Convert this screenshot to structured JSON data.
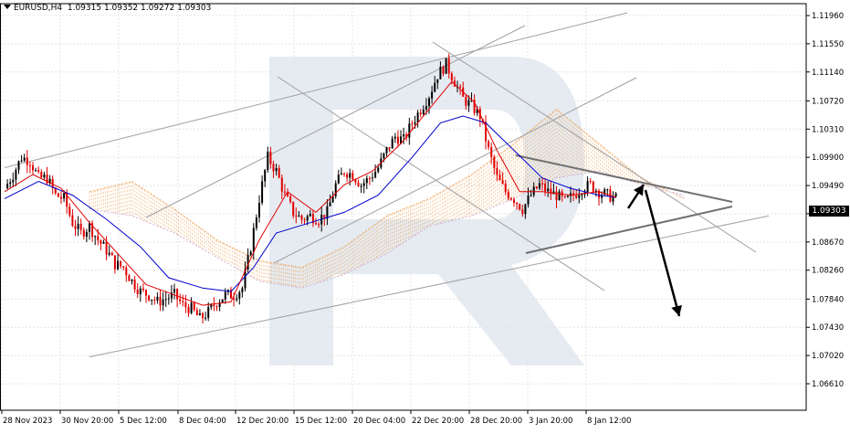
{
  "header": {
    "symbol": "EURUSD,H4",
    "ohlc": "1.09315 1.09352 1.09272 1.09303"
  },
  "current_price": "1.09303",
  "colors": {
    "bull": "#000000",
    "bear": "#e00000",
    "tenkan": "#e00000",
    "kijun": "#0000cc",
    "kumo_bull": "#f0a050",
    "kumo_bear": "#c8a0d0",
    "trendline": "#a0a0a0",
    "triangle": "#707070",
    "arrow": "#000000",
    "watermark": "#dfe6ee"
  },
  "chart_data": {
    "type": "candlestick",
    "y_ticks": [
      "1.11960",
      "1.11550",
      "1.11140",
      "1.10720",
      "1.10310",
      "1.09900",
      "1.09490",
      "1.09080",
      "1.08670",
      "1.08260",
      "1.07840",
      "1.07430",
      "1.07020",
      "1.06610"
    ],
    "x_ticks": [
      "28 Nov 2023",
      "30 Nov 20:00",
      "5 Dec 12:00",
      "8 Dec 04:00",
      "12 Dec 20:00",
      "15 Dec 12:00",
      "20 Dec 04:00",
      "22 Dec 20:00",
      "28 Dec 20:00",
      "3 Jan 20:00",
      "8 Jan 12:00"
    ],
    "ylim": [
      1.0661,
      1.1196
    ],
    "grid": true,
    "close_path": [
      [
        0,
        1.0945
      ],
      [
        3,
        1.0965
      ],
      [
        6,
        1.099
      ],
      [
        9,
        1.0985
      ],
      [
        12,
        1.096
      ],
      [
        15,
        1.096
      ],
      [
        18,
        1.0935
      ],
      [
        21,
        1.093
      ],
      [
        24,
        1.0895
      ],
      [
        27,
        1.088
      ],
      [
        30,
        1.089
      ],
      [
        33,
        1.087
      ],
      [
        36,
        1.0855
      ],
      [
        39,
        1.0835
      ],
      [
        42,
        1.083
      ],
      [
        45,
        1.081
      ],
      [
        48,
        1.0795
      ],
      [
        51,
        1.079
      ],
      [
        54,
        1.078
      ],
      [
        57,
        1.0785
      ],
      [
        60,
        1.079
      ],
      [
        63,
        1.0775
      ],
      [
        66,
        1.077
      ],
      [
        69,
        1.0755
      ],
      [
        72,
        1.0765
      ],
      [
        75,
        1.078
      ],
      [
        78,
        1.079
      ],
      [
        81,
        1.079
      ],
      [
        84,
        1.08
      ],
      [
        87,
        1.086
      ],
      [
        90,
        1.093
      ],
      [
        93,
        1.099
      ],
      [
        96,
        1.097
      ],
      [
        99,
        1.0935
      ],
      [
        102,
        1.091
      ],
      [
        105,
        1.09
      ],
      [
        108,
        1.0905
      ],
      [
        111,
        1.09
      ],
      [
        114,
        1.091
      ],
      [
        117,
        1.095
      ],
      [
        120,
        1.097
      ],
      [
        123,
        1.0965
      ],
      [
        126,
        1.095
      ],
      [
        129,
        1.096
      ],
      [
        132,
        1.0975
      ],
      [
        135,
        1.1
      ],
      [
        138,
        1.102
      ],
      [
        141,
        1.1015
      ],
      [
        144,
        1.104
      ],
      [
        147,
        1.106
      ],
      [
        150,
        1.108
      ],
      [
        153,
        1.111
      ],
      [
        156,
        1.1125
      ],
      [
        159,
        1.11
      ],
      [
        162,
        1.1075
      ],
      [
        165,
        1.1065
      ],
      [
        168,
        1.105
      ],
      [
        171,
        1.1
      ],
      [
        174,
        1.096
      ],
      [
        177,
        1.094
      ],
      [
        180,
        1.093
      ],
      [
        183,
        1.0915
      ],
      [
        186,
        1.0935
      ],
      [
        189,
        1.095
      ],
      [
        192,
        1.094
      ],
      [
        195,
        1.0935
      ],
      [
        198,
        1.0925
      ],
      [
        201,
        1.0935
      ],
      [
        204,
        1.0945
      ],
      [
        207,
        1.095
      ],
      [
        210,
        1.094
      ],
      [
        213,
        1.0935
      ],
      [
        216,
        1.093
      ]
    ],
    "tenkan_path": [
      [
        0,
        1.094
      ],
      [
        10,
        1.0965
      ],
      [
        20,
        1.0945
      ],
      [
        30,
        1.0895
      ],
      [
        40,
        1.085
      ],
      [
        50,
        1.0805
      ],
      [
        60,
        1.079
      ],
      [
        70,
        1.0775
      ],
      [
        80,
        1.078
      ],
      [
        90,
        1.087
      ],
      [
        100,
        1.094
      ],
      [
        110,
        1.091
      ],
      [
        120,
        1.095
      ],
      [
        130,
        1.097
      ],
      [
        140,
        1.101
      ],
      [
        150,
        1.106
      ],
      [
        158,
        1.11
      ],
      [
        166,
        1.107
      ],
      [
        174,
        1.1
      ],
      [
        182,
        1.094
      ],
      [
        190,
        1.094
      ],
      [
        200,
        1.0935
      ],
      [
        210,
        1.094
      ],
      [
        216,
        1.0932
      ]
    ],
    "kijun_path": [
      [
        0,
        1.093
      ],
      [
        12,
        1.0955
      ],
      [
        24,
        1.0935
      ],
      [
        36,
        1.09
      ],
      [
        48,
        1.086
      ],
      [
        58,
        1.0815
      ],
      [
        70,
        1.08
      ],
      [
        80,
        1.0795
      ],
      [
        88,
        1.083
      ],
      [
        96,
        1.088
      ],
      [
        108,
        1.0895
      ],
      [
        120,
        1.091
      ],
      [
        132,
        1.0935
      ],
      [
        144,
        1.099
      ],
      [
        154,
        1.104
      ],
      [
        162,
        1.105
      ],
      [
        170,
        1.104
      ],
      [
        180,
        1.1
      ],
      [
        190,
        1.096
      ],
      [
        200,
        1.0945
      ],
      [
        210,
        1.0935
      ],
      [
        216,
        1.0932
      ]
    ],
    "senkou_a_path": [
      [
        30,
        1.094
      ],
      [
        45,
        1.0955
      ],
      [
        60,
        1.0915
      ],
      [
        75,
        1.087
      ],
      [
        90,
        1.084
      ],
      [
        105,
        1.083
      ],
      [
        120,
        1.086
      ],
      [
        135,
        1.0905
      ],
      [
        150,
        1.093
      ],
      [
        165,
        1.0965
      ],
      [
        180,
        1.101
      ],
      [
        195,
        1.106
      ],
      [
        210,
        1.101
      ],
      [
        225,
        1.096
      ],
      [
        240,
        1.093
      ]
    ],
    "senkou_b_path": [
      [
        30,
        1.0915
      ],
      [
        45,
        1.0905
      ],
      [
        60,
        1.088
      ],
      [
        75,
        1.0845
      ],
      [
        90,
        1.081
      ],
      [
        105,
        1.08
      ],
      [
        120,
        1.082
      ],
      [
        135,
        1.085
      ],
      [
        150,
        1.089
      ],
      [
        165,
        1.0905
      ],
      [
        180,
        1.093
      ],
      [
        195,
        1.096
      ],
      [
        210,
        1.097
      ],
      [
        225,
        1.095
      ],
      [
        240,
        1.0935
      ]
    ],
    "channel_upper": [
      [
        0,
        1.0975
      ],
      [
        220,
        1.12
      ]
    ],
    "channel_lower": [
      [
        30,
        1.07
      ],
      [
        270,
        1.0905
      ]
    ],
    "triangle_upper": [
      [
        165,
        1.099
      ],
      [
        235,
        1.0935
      ]
    ],
    "triangle_lower": [
      [
        168,
        1.088
      ],
      [
        235,
        1.0932
      ]
    ],
    "forecast_arrow_up": [
      [
        210,
        1.093
      ],
      [
        218,
        1.096
      ]
    ],
    "forecast_arrow_down": [
      [
        218,
        1.096
      ],
      [
        232,
        1.079
      ]
    ],
    "series": []
  }
}
